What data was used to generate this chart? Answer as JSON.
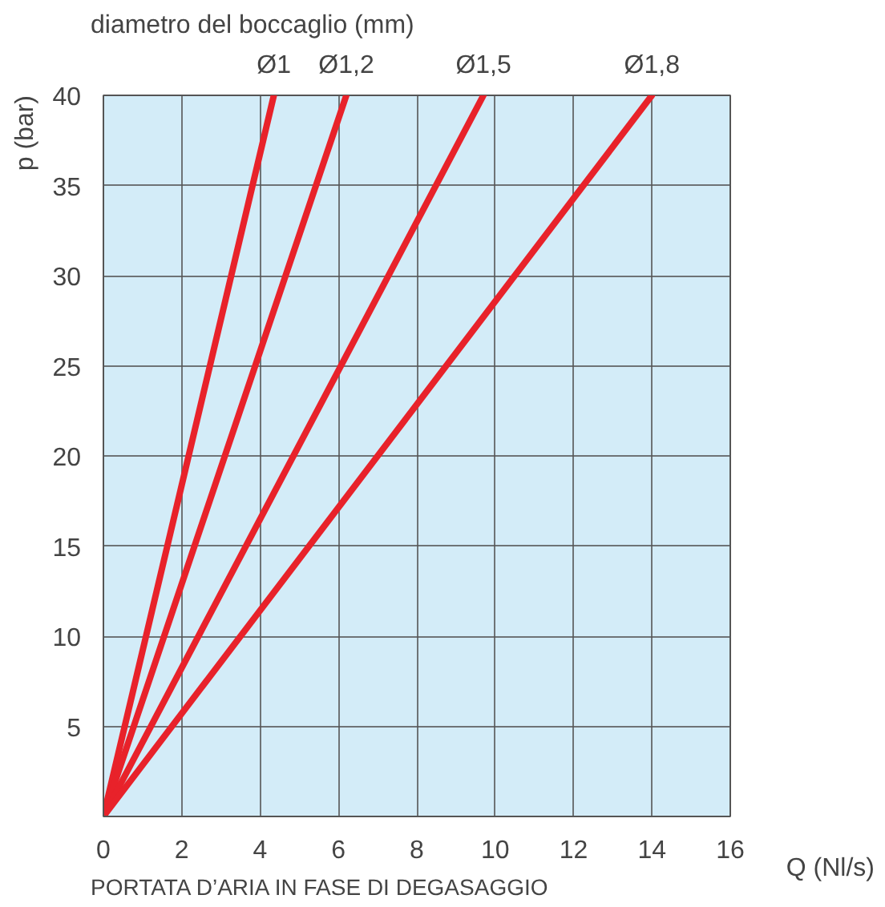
{
  "chart_data": {
    "type": "line",
    "title": "diametro del boccaglio (mm)",
    "xlabel": "Q (Nl/s)",
    "ylabel": "p (bar)",
    "annotations": [
      "PORTATA D’ARIA IN FASE DI DEGASAGGIO"
    ],
    "series": [
      {
        "name": "Ø1",
        "color": "#e8222a",
        "x": [
          0,
          4.35
        ],
        "values": [
          0,
          40
        ]
      },
      {
        "name": "Ø1,2",
        "color": "#e8222a",
        "x": [
          0,
          6.2
        ],
        "values": [
          0,
          40
        ]
      },
      {
        "name": "Ø1,5",
        "color": "#e8222a",
        "x": [
          0,
          9.7
        ],
        "values": [
          0,
          40
        ]
      },
      {
        "name": "Ø1,8",
        "color": "#e8222a",
        "x": [
          0,
          14
        ],
        "values": [
          0,
          40
        ]
      }
    ],
    "xlim": [
      0,
      16
    ],
    "xticks": [
      0,
      2,
      4,
      6,
      8,
      10,
      12,
      14,
      16
    ],
    "ylim": [
      0,
      40
    ],
    "yticks": [
      5,
      10,
      15,
      20,
      25,
      30,
      35,
      40
    ],
    "grid": true,
    "marker": "none",
    "line_style": "solid"
  }
}
